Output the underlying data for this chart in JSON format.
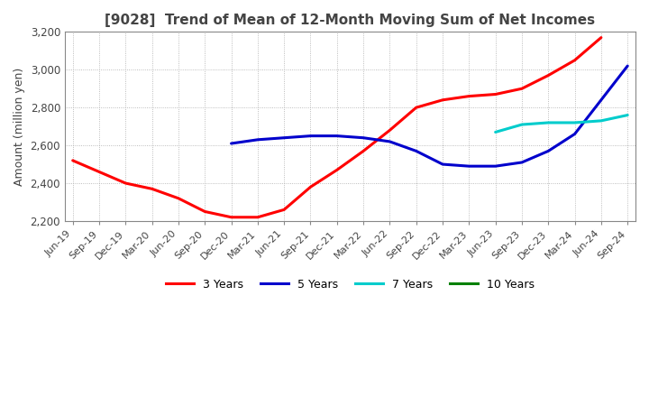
{
  "title": "[9028]  Trend of Mean of 12-Month Moving Sum of Net Incomes",
  "ylabel": "Amount (million yen)",
  "ylim": [
    2200,
    3200
  ],
  "yticks": [
    2200,
    2400,
    2600,
    2800,
    3000,
    3200
  ],
  "bg_color": "#ffffff",
  "grid_color": "#aaaaaa",
  "x_labels": [
    "Jun-19",
    "Sep-19",
    "Dec-19",
    "Mar-20",
    "Jun-20",
    "Sep-20",
    "Dec-20",
    "Mar-21",
    "Jun-21",
    "Sep-21",
    "Dec-21",
    "Mar-22",
    "Jun-22",
    "Sep-22",
    "Dec-22",
    "Mar-23",
    "Jun-23",
    "Sep-23",
    "Dec-23",
    "Mar-24",
    "Jun-24",
    "Sep-24"
  ],
  "series": [
    {
      "name": "3 Years",
      "color": "#ff0000",
      "data": [
        2520,
        2460,
        2400,
        2370,
        2320,
        2250,
        2220,
        2220,
        2260,
        2380,
        2470,
        2570,
        2680,
        2800,
        2840,
        2860,
        2870,
        2900,
        2970,
        3050,
        3170,
        null
      ]
    },
    {
      "name": "5 Years",
      "color": "#0000cc",
      "data": [
        null,
        null,
        null,
        null,
        null,
        null,
        2610,
        2630,
        2640,
        2650,
        2650,
        2640,
        2620,
        2570,
        2500,
        2490,
        2490,
        2510,
        2570,
        2660,
        2840,
        3020
      ]
    },
    {
      "name": "7 Years",
      "color": "#00cccc",
      "data": [
        null,
        null,
        null,
        null,
        null,
        null,
        null,
        null,
        null,
        null,
        null,
        null,
        null,
        null,
        null,
        null,
        2670,
        2710,
        2720,
        2720,
        2730,
        2760
      ]
    },
    {
      "name": "10 Years",
      "color": "#008000",
      "data": [
        null,
        null,
        null,
        null,
        null,
        null,
        null,
        null,
        null,
        null,
        null,
        null,
        null,
        null,
        null,
        null,
        null,
        null,
        null,
        null,
        null,
        null
      ]
    }
  ]
}
